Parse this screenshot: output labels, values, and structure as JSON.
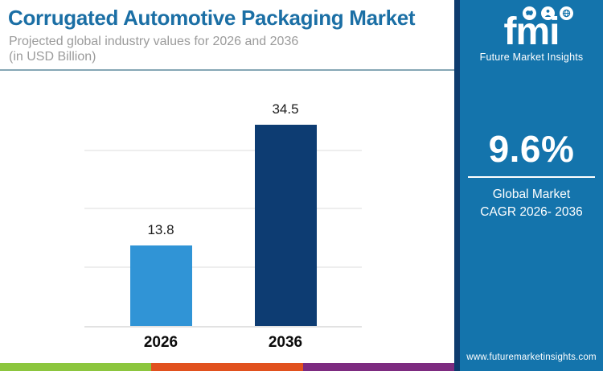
{
  "header": {
    "title": "Corrugated Automotive Packaging Market",
    "subtitle_line1": "Projected global industry values for 2026 and 2036",
    "subtitle_line2": "(in USD Billion)"
  },
  "chart_data": {
    "type": "bar",
    "title": "Corrugated Automotive Packaging Market",
    "subtitle": "Projected global industry values for 2026 and 2036 (in USD Billion)",
    "categories": [
      "2026",
      "2036"
    ],
    "values": [
      13.8,
      34.5
    ],
    "value_labels": [
      "13.8",
      "34.5"
    ],
    "unit": "USD Billion",
    "xlabel": "",
    "ylabel": "",
    "ylim": [
      0,
      40
    ],
    "gridline_step": 10,
    "grid": true,
    "legend": false,
    "bar_colors": [
      "#3094d6",
      "#0d3c72"
    ]
  },
  "sidebar": {
    "logo_text": "fmi",
    "logo_subtext": "Future Market Insights",
    "cagr_value": "9.6%",
    "cagr_label_line1": "Global Market",
    "cagr_label_line2": "CAGR 2026- 2036",
    "website": "www.futuremarketinsights.com"
  },
  "footer_stripe": {
    "colors": [
      "#8cc63e",
      "#e1511e",
      "#7d2b80"
    ]
  },
  "colors": {
    "title_text": "#1b6fa5",
    "subtitle_text": "#9b9b9b",
    "header_divider": "#86a7b5",
    "sidebar_background": "#1474ac",
    "sidebar_accent_strip": "#0d3c6e",
    "bar_2026": "#3094d6",
    "bar_2036": "#0d3c72"
  }
}
